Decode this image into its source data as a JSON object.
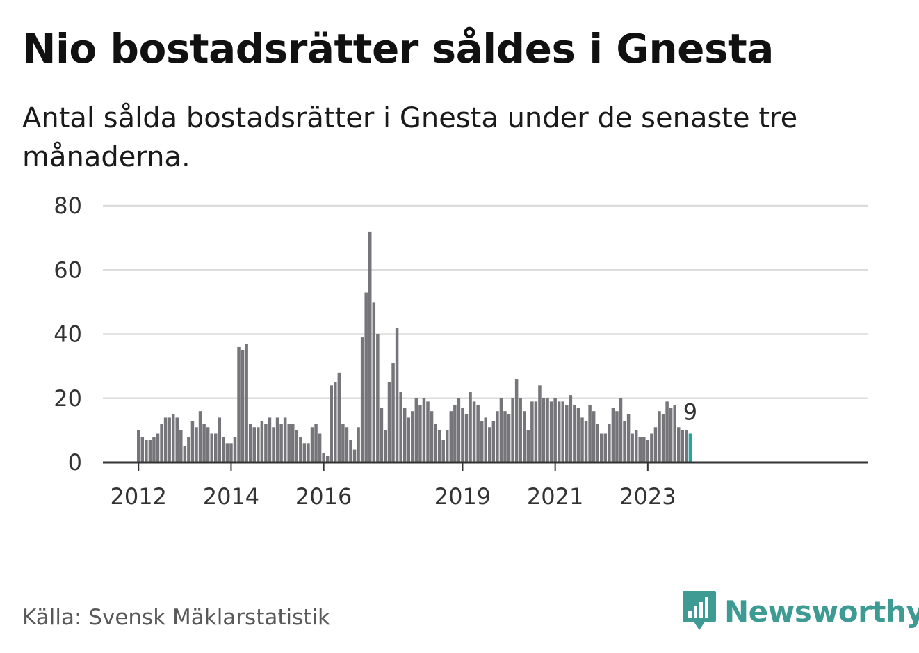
{
  "title": "Nio bostadsrätter såldes i Gnesta",
  "subtitle": "Antal sålda bostadsrätter i Gnesta under de senaste tre månaderna.",
  "source": "Källa: Svensk Mäklarstatistik",
  "brand": "Newsworthy",
  "colors": {
    "bar": "#76767a",
    "highlight": "#26a59a",
    "grid": "#dcdcdc",
    "axis": "#333333",
    "brand": "#3d9b94"
  },
  "chart_data": {
    "type": "bar",
    "title": "Nio bostadsrätter såldes i Gnesta",
    "xlabel": "",
    "ylabel": "",
    "ylim": [
      0,
      80
    ],
    "yticks": [
      0,
      20,
      40,
      60,
      80
    ],
    "grid": true,
    "start": "2012-01",
    "frequency": "monthly",
    "xticks": [
      {
        "label": "2012",
        "index": 0
      },
      {
        "label": "2014",
        "index": 24
      },
      {
        "label": "2016",
        "index": 48
      },
      {
        "label": "2019",
        "index": 84
      },
      {
        "label": "2021",
        "index": 108
      },
      {
        "label": "2023",
        "index": 132
      }
    ],
    "values": [
      10,
      8,
      7,
      7,
      8,
      9,
      12,
      14,
      14,
      15,
      14,
      10,
      5,
      8,
      13,
      11,
      16,
      12,
      11,
      9,
      9,
      14,
      8,
      6,
      6,
      8,
      36,
      35,
      37,
      12,
      11,
      11,
      13,
      12,
      14,
      11,
      14,
      12,
      14,
      12,
      12,
      10,
      8,
      6,
      6,
      11,
      12,
      9,
      3,
      2,
      24,
      25,
      28,
      12,
      11,
      7,
      4,
      11,
      39,
      53,
      72,
      50,
      40,
      17,
      10,
      25,
      31,
      42,
      22,
      17,
      14,
      16,
      20,
      18,
      20,
      19,
      16,
      12,
      10,
      7,
      10,
      16,
      18,
      20,
      17,
      15,
      22,
      19,
      18,
      13,
      14,
      11,
      13,
      16,
      20,
      16,
      15,
      20,
      26,
      20,
      16,
      10,
      19,
      19,
      24,
      20,
      20,
      19,
      20,
      19,
      19,
      18,
      21,
      18,
      17,
      14,
      13,
      18,
      16,
      12,
      9,
      9,
      12,
      17,
      16,
      20,
      13,
      15,
      9,
      10,
      8,
      8,
      7,
      9,
      11,
      16,
      15,
      19,
      17,
      18,
      11,
      10,
      10,
      9
    ],
    "highlight_last": true,
    "annotation": "9"
  }
}
